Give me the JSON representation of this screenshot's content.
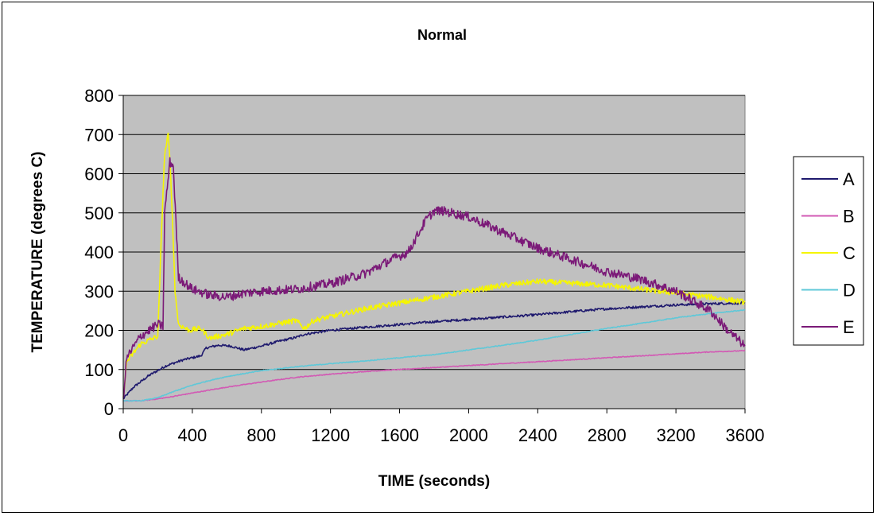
{
  "chart_data": {
    "type": "line",
    "title": "Normal",
    "xlabel": "TIME (seconds)",
    "ylabel": "TEMPERATURE (degrees C)",
    "xlim": [
      0,
      3600
    ],
    "ylim": [
      0,
      800
    ],
    "xticks": [
      0,
      400,
      800,
      1200,
      1600,
      2000,
      2400,
      2800,
      3200,
      3600
    ],
    "yticks": [
      0,
      100,
      200,
      300,
      400,
      500,
      600,
      700,
      800
    ],
    "grid": "horizontal",
    "legend_position": "right",
    "plot_background": "#c0c0c0",
    "series": [
      {
        "name": "A",
        "color": "#1f1a6e",
        "noise": 3,
        "x": [
          0,
          60,
          150,
          250,
          350,
          450,
          480,
          550,
          620,
          700,
          800,
          900,
          1000,
          1050,
          1200,
          1400,
          1600,
          1800,
          2000,
          2200,
          2400,
          2600,
          2800,
          3000,
          3200,
          3400,
          3600
        ],
        "y": [
          25,
          55,
          85,
          110,
          125,
          135,
          155,
          162,
          160,
          150,
          160,
          172,
          182,
          190,
          200,
          208,
          215,
          222,
          228,
          234,
          240,
          248,
          255,
          260,
          265,
          268,
          270
        ]
      },
      {
        "name": "B",
        "color": "#d25ab4",
        "noise": 1,
        "x": [
          0,
          100,
          200,
          300,
          400,
          600,
          800,
          1000,
          1200,
          1400,
          1600,
          1800,
          2000,
          2200,
          2400,
          2600,
          2800,
          3000,
          3200,
          3400,
          3600
        ],
        "y": [
          20,
          20,
          25,
          32,
          40,
          55,
          68,
          80,
          88,
          95,
          100,
          105,
          110,
          115,
          120,
          125,
          130,
          135,
          140,
          145,
          148
        ]
      },
      {
        "name": "C",
        "color": "#f5f500",
        "noise": 7,
        "x": [
          0,
          20,
          100,
          200,
          230,
          240,
          260,
          275,
          300,
          320,
          380,
          450,
          500,
          600,
          700,
          800,
          1000,
          1050,
          1100,
          1200,
          1400,
          1600,
          1800,
          2000,
          2200,
          2400,
          2600,
          2800,
          3000,
          3200,
          3400,
          3600
        ],
        "y": [
          25,
          120,
          165,
          185,
          550,
          650,
          700,
          600,
          300,
          215,
          200,
          205,
          180,
          190,
          205,
          210,
          225,
          205,
          225,
          235,
          255,
          270,
          285,
          300,
          315,
          325,
          320,
          315,
          305,
          295,
          285,
          272
        ]
      },
      {
        "name": "D",
        "color": "#5fc8d8",
        "noise": 1,
        "x": [
          0,
          100,
          200,
          300,
          400,
          500,
          600,
          800,
          1000,
          1200,
          1400,
          1600,
          1800,
          2000,
          2200,
          2400,
          2600,
          2800,
          3000,
          3200,
          3400,
          3600
        ],
        "y": [
          20,
          20,
          28,
          45,
          60,
          72,
          82,
          97,
          107,
          115,
          122,
          130,
          138,
          150,
          162,
          175,
          190,
          205,
          218,
          232,
          243,
          252
        ]
      },
      {
        "name": "E",
        "color": "#7b1a78",
        "noise": 12,
        "x": [
          0,
          20,
          100,
          200,
          230,
          240,
          270,
          290,
          320,
          400,
          500,
          600,
          700,
          800,
          1000,
          1200,
          1400,
          1550,
          1650,
          1750,
          1800,
          1850,
          2000,
          2200,
          2400,
          2600,
          2800,
          3000,
          3200,
          3400,
          3500,
          3600
        ],
        "y": [
          25,
          130,
          185,
          215,
          210,
          500,
          630,
          620,
          335,
          305,
          290,
          285,
          295,
          300,
          305,
          320,
          345,
          380,
          400,
          480,
          505,
          505,
          490,
          450,
          410,
          380,
          350,
          330,
          300,
          250,
          200,
          160
        ]
      }
    ]
  }
}
